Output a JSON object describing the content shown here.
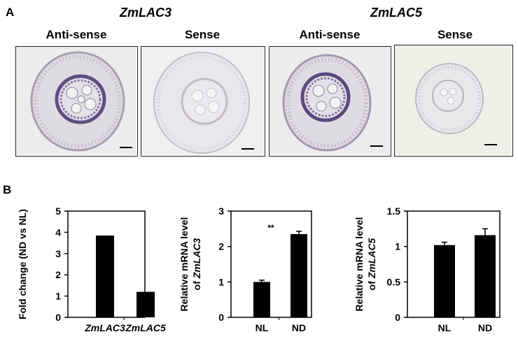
{
  "panels": {
    "a": {
      "letter": "A",
      "genes": [
        "ZmLAC3",
        "ZmLAC5"
      ],
      "columns": [
        "Anti-sense",
        "Sense",
        "Anti-sense",
        "Sense"
      ]
    },
    "b": {
      "letter": "B"
    }
  },
  "colors": {
    "bar": "#000000",
    "stain_purple": "#6a5a8c",
    "tissue": "#c9c3cf"
  },
  "chart_data": [
    {
      "type": "bar",
      "ylabel": "Fold change (ND vs NL)",
      "categories": [
        "ZmLAC3",
        "ZmLAC5"
      ],
      "values": [
        3.85,
        1.2
      ],
      "ylim": [
        0,
        5
      ],
      "yticks": [
        "0",
        "1",
        "2",
        "3",
        "4",
        "5"
      ],
      "italic_categories": true
    },
    {
      "type": "bar",
      "ylabel_line1": "Relative mRNA level",
      "ylabel_prefix": "of ",
      "ylabel_gene": "ZmLAC3",
      "categories": [
        "NL",
        "ND"
      ],
      "values": [
        1.0,
        2.35
      ],
      "errors": [
        0.05,
        0.08
      ],
      "ylim": [
        0,
        3
      ],
      "yticks": [
        "0",
        "1",
        "2",
        "3"
      ],
      "annotation": "**"
    },
    {
      "type": "bar",
      "ylabel_line1": "Relative mRNA level",
      "ylabel_prefix": "of ",
      "ylabel_gene": "ZmLAC5",
      "categories": [
        "NL",
        "ND"
      ],
      "values": [
        1.02,
        1.16
      ],
      "errors": [
        0.04,
        0.09
      ],
      "ylim": [
        0,
        1.5
      ],
      "yticks": [
        "0",
        "0.5",
        "1",
        "1.5"
      ]
    }
  ]
}
